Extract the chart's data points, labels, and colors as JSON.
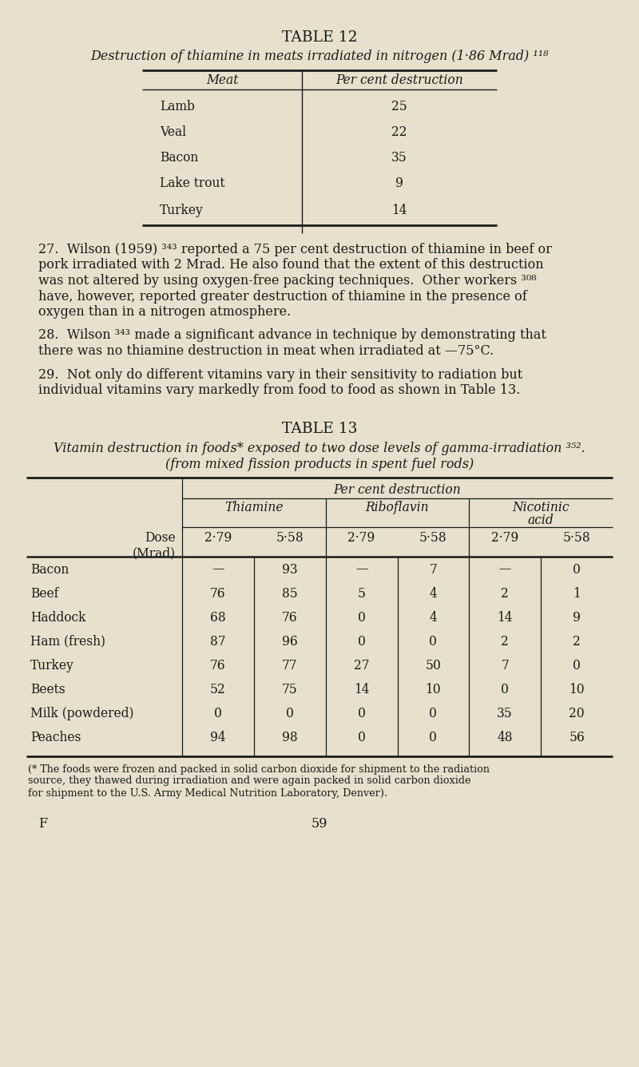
{
  "bg_color": "#e8e0cc",
  "text_color": "#1a1a1a",
  "table12_title": "Table 12",
  "table12_subtitle": "Destruction of thiamine in meats irradiated in nitrogen (1·86 Mrad) ¹¹⁸",
  "table12_col1_header": "Meat",
  "table12_col2_header": "Per cent destruction",
  "table12_data": [
    [
      "Lamb",
      "25"
    ],
    [
      "Veal",
      "22"
    ],
    [
      "Bacon",
      "35"
    ],
    [
      "Lake trout",
      "9"
    ],
    [
      "Turkey",
      "14"
    ]
  ],
  "para27_lines": [
    "27.  Wilson (1959) ³⁴³ reported a 75 per cent destruction of thiamine in beef or",
    "pork irradiated with 2 Mrad. He also found that the extent of this destruction",
    "was not altered by using oxygen-free packing techniques.  Other workers ³⁰⁸",
    "have, however, reported greater destruction of thiamine in the presence of",
    "oxygen than in a nitrogen atmosphere."
  ],
  "para28_lines": [
    "28.  Wilson ³⁴³ made a significant advance in technique by demonstrating that",
    "there was no thiamine destruction in meat when irradiated at —75°C."
  ],
  "para29_lines": [
    "29.  Not only do different vitamins vary in their sensitivity to radiation but",
    "individual vitamins vary markedly from food to food as shown in Table 13."
  ],
  "table13_title": "Table 13",
  "table13_subtitle_line1": "Vitamin destruction in foods* exposed to two dose levels of gamma-irradiation ³⁵².",
  "table13_subtitle_line2": "(from mixed fission products in spent fuel rods)",
  "table13_per_cent": "Per cent destruction",
  "table13_thiamine": "Thiamine",
  "table13_riboflavin": "Riboflavin",
  "table13_nicotinic_line1": "Nicotinic",
  "table13_nicotinic_line2": "acid",
  "table13_dose_label": "Dose\n(Mrad)",
  "table13_doses": [
    "2·79",
    "5·58",
    "2·79",
    "5·58",
    "2·79",
    "5·58"
  ],
  "table13_foods": [
    "Bacon",
    "Beef",
    "Haddock",
    "Ham (fresh)",
    "Turkey",
    "Beets",
    "Milk (powdered)",
    "Peaches"
  ],
  "table13_data": [
    [
      "—",
      "93",
      "—",
      "7",
      "—",
      "0"
    ],
    [
      "76",
      "85",
      "5",
      "4",
      "2",
      "1"
    ],
    [
      "68",
      "76",
      "0",
      "4",
      "14",
      "9"
    ],
    [
      "87",
      "96",
      "0",
      "0",
      "2",
      "2"
    ],
    [
      "76",
      "77",
      "27",
      "50",
      "7",
      "0"
    ],
    [
      "52",
      "75",
      "14",
      "10",
      "0",
      "10"
    ],
    [
      "0",
      "0",
      "0",
      "0",
      "35",
      "20"
    ],
    [
      "94",
      "98",
      "0",
      "0",
      "48",
      "56"
    ]
  ],
  "footnote_lines": [
    "(* The foods were frozen and packed in solid carbon dioxide for shipment to the radiation",
    "source, they thawed during irradiation and were again packed in solid carbon dioxide",
    "for shipment to the U.S. Army Medical Nutrition Laboratory, Denver)."
  ],
  "page_label": "F",
  "page_number": "59"
}
